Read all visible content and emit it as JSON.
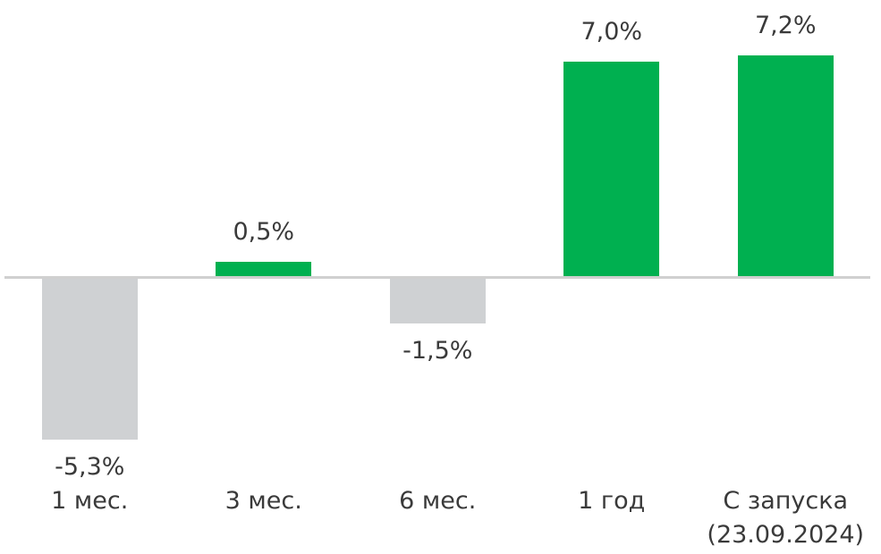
{
  "chart_data": {
    "type": "bar",
    "categories": [
      "1 мес.",
      "3 мес.",
      "6 мес.",
      "1 год",
      "С запуска\n(23.09.2024)"
    ],
    "values": [
      -5.3,
      0.5,
      -1.5,
      7.0,
      7.2
    ],
    "value_labels": [
      "-5,3%",
      "0,5%",
      "-1,5%",
      "7,0%",
      "7,2%"
    ],
    "colors": {
      "positive": "#00b050",
      "negative": "#cfd1d3"
    }
  }
}
